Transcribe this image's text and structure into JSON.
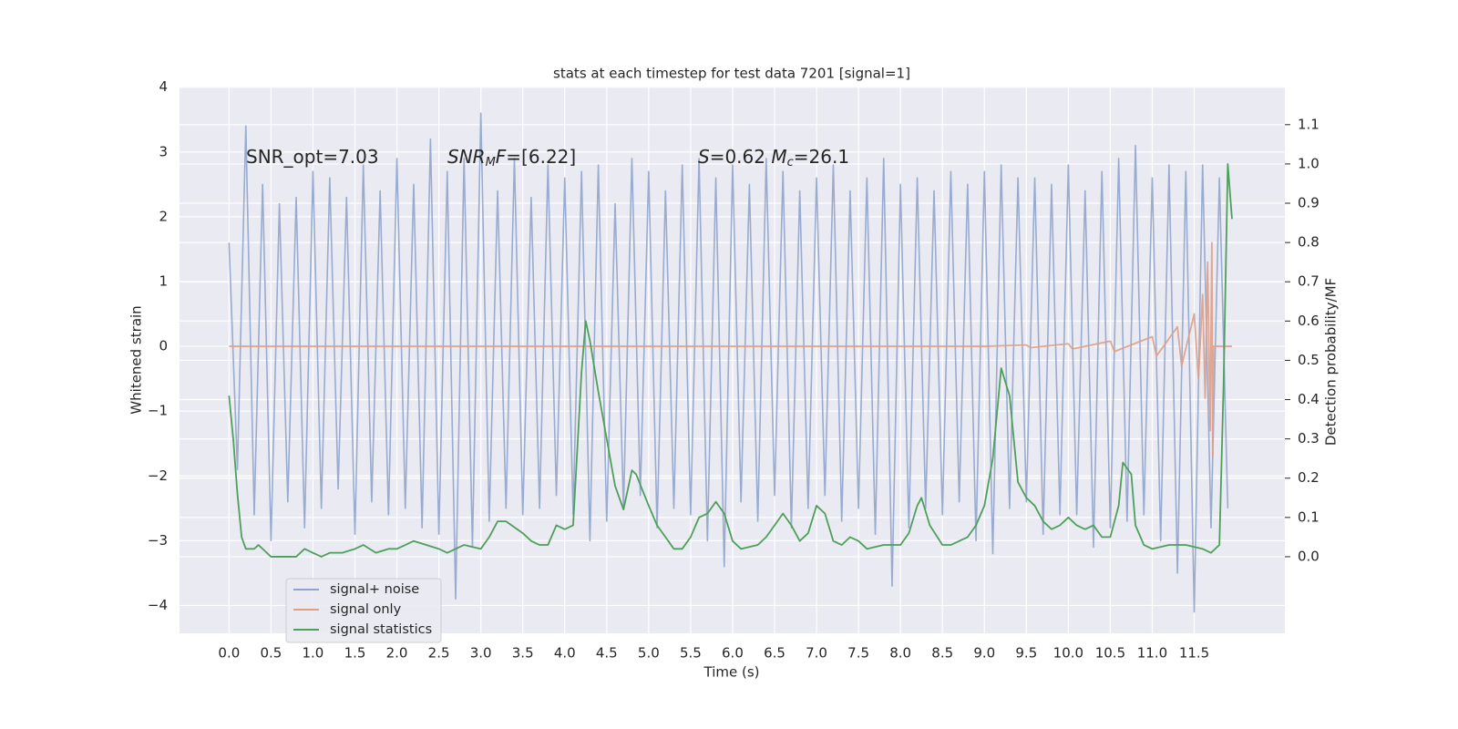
{
  "chart_data": {
    "type": "line",
    "title": "stats at each timestep for test data 7201 [signal=1]",
    "xlabel": "Time (s)",
    "ylabel": "Whitened strain",
    "y2label": "Detection probability/MF",
    "xlim": [
      -0.59,
      12.58
    ],
    "ylim": [
      -4.43,
      4.01
    ],
    "y2lim": [
      -0.195,
      1.197
    ],
    "xticks": [
      {
        "value": 0,
        "label": "0.0"
      },
      0.5,
      {
        "value": 1,
        "label": "1.0"
      },
      1.5,
      {
        "value": 2,
        "label": "2.0"
      },
      2.5,
      {
        "value": 3,
        "label": "3.0"
      },
      3.5,
      {
        "value": 4,
        "label": "4.0"
      },
      4.5,
      {
        "value": 5,
        "label": "5.0"
      },
      5.5,
      {
        "value": 6,
        "label": "6.0"
      },
      6.5,
      {
        "value": 7,
        "label": "7.0"
      },
      7.5,
      {
        "value": 8,
        "label": "8.0"
      },
      8.5,
      {
        "value": 9,
        "label": "9.0"
      },
      9.5,
      {
        "value": 10,
        "label": "10.0"
      },
      10.5,
      {
        "value": 11,
        "label": "11.0"
      },
      11.5
    ],
    "yticks": [
      {
        "value": -4,
        "label": "−4"
      },
      {
        "value": -3,
        "label": "−3"
      },
      {
        "value": -2,
        "label": "−2"
      },
      {
        "value": -1,
        "label": "−1"
      },
      0,
      1,
      2,
      3,
      4
    ],
    "y2ticks": [
      {
        "value": 0,
        "label": "0.0"
      },
      0.1,
      0.2,
      0.3,
      0.4,
      0.5,
      0.6,
      0.7,
      0.8,
      0.9,
      {
        "value": 1,
        "label": "1.0"
      },
      1.1
    ],
    "grid": true,
    "legend": "lower left",
    "annotations": [
      {
        "parts": [
          {
            "text": "SNR_opt=7.03"
          }
        ]
      },
      {
        "parts": [
          {
            "text": "SNR",
            "italic": true
          },
          {
            "text": "M",
            "italic": true,
            "sub": true
          },
          {
            "text": "F",
            "italic": true
          },
          {
            "text": "=[6.22]"
          }
        ]
      },
      {
        "parts": [
          {
            "text": "S",
            "italic": true
          },
          {
            "text": "=0.62  "
          },
          {
            "text": "M",
            "italic": true
          },
          {
            "text": "c",
            "italic": true,
            "sub": true
          },
          {
            "text": "=26.1"
          }
        ]
      }
    ],
    "series": [
      {
        "name": "signal+ noise",
        "color": "#8fa4cc",
        "axis": "y",
        "x": [
          0,
          0.1,
          0.2,
          0.3,
          0.4,
          0.5,
          0.6,
          0.7,
          0.8,
          0.9,
          1,
          1.1,
          1.2,
          1.3,
          1.4,
          1.5,
          1.6,
          1.7,
          1.8,
          1.9,
          2,
          2.1,
          2.2,
          2.3,
          2.4,
          2.5,
          2.6,
          2.7,
          2.8,
          2.9,
          3,
          3.1,
          3.2,
          3.3,
          3.4,
          3.5,
          3.6,
          3.7,
          3.8,
          3.9,
          4,
          4.1,
          4.2,
          4.3,
          4.4,
          4.5,
          4.6,
          4.7,
          4.8,
          4.9,
          5,
          5.1,
          5.2,
          5.3,
          5.4,
          5.5,
          5.6,
          5.7,
          5.8,
          5.9,
          6,
          6.1,
          6.2,
          6.3,
          6.4,
          6.5,
          6.6,
          6.7,
          6.8,
          6.9,
          7,
          7.1,
          7.2,
          7.3,
          7.4,
          7.5,
          7.6,
          7.7,
          7.8,
          7.9,
          8,
          8.1,
          8.2,
          8.3,
          8.4,
          8.5,
          8.6,
          8.7,
          8.8,
          8.9,
          9,
          9.1,
          9.2,
          9.3,
          9.4,
          9.5,
          9.6,
          9.7,
          9.8,
          9.9,
          10,
          10.1,
          10.2,
          10.3,
          10.4,
          10.5,
          10.6,
          10.7,
          10.8,
          10.9,
          11,
          11.1,
          11.2,
          11.3,
          11.4,
          11.5,
          11.6,
          11.7,
          11.8,
          11.9
        ],
        "values": [
          1.6,
          -1.9,
          3.4,
          -2.6,
          2.5,
          -3.0,
          2.2,
          -2.4,
          2.3,
          -2.8,
          2.7,
          -2.5,
          2.6,
          -2.2,
          2.3,
          -2.9,
          2.8,
          -2.4,
          2.4,
          -2.6,
          2.9,
          -2.5,
          2.5,
          -2.8,
          3.2,
          -2.9,
          2.7,
          -3.9,
          2.9,
          -3.1,
          3.6,
          -2.7,
          2.4,
          -2.5,
          2.9,
          -2.6,
          2.3,
          -2.5,
          2.8,
          -2.3,
          2.6,
          -2.6,
          2.7,
          -3.0,
          2.8,
          -2.7,
          2.2,
          -2.5,
          2.9,
          -2.3,
          2.7,
          -2.8,
          2.4,
          -2.5,
          2.8,
          -2.6,
          2.9,
          -3.0,
          2.6,
          -3.4,
          2.8,
          -2.4,
          2.5,
          -2.7,
          2.9,
          -2.3,
          2.7,
          -2.8,
          2.4,
          -2.5,
          2.6,
          -2.3,
          2.8,
          -2.7,
          2.4,
          -2.5,
          2.6,
          -2.9,
          2.9,
          -3.7,
          2.5,
          -2.8,
          2.6,
          -2.5,
          2.4,
          -2.6,
          2.7,
          -2.4,
          2.5,
          -3.0,
          2.7,
          -3.2,
          2.8,
          -2.5,
          2.6,
          -2.4,
          2.6,
          -2.9,
          2.5,
          -2.6,
          2.8,
          -2.6,
          2.4,
          -3.1,
          2.7,
          -2.8,
          2.9,
          -2.7,
          3.1,
          -2.6,
          2.6,
          -3.0,
          2.8,
          -3.5,
          2.7,
          -4.1,
          2.8,
          -2.8,
          2.6,
          -2.5
        ]
      },
      {
        "name": "signal only",
        "color": "#dd9f88",
        "axis": "y",
        "x": [
          0,
          9.0,
          9.5,
          9.55,
          10.0,
          10.05,
          10.5,
          10.55,
          11.0,
          11.05,
          11.3,
          11.35,
          11.5,
          11.55,
          11.6,
          11.63,
          11.66,
          11.69,
          11.71,
          11.72,
          11.73,
          11.95
        ],
        "values": [
          0,
          0,
          0.02,
          -0.02,
          0.04,
          -0.04,
          0.08,
          -0.08,
          0.15,
          -0.15,
          0.3,
          -0.3,
          0.5,
          -0.5,
          0.8,
          -0.8,
          1.3,
          -1.3,
          1.6,
          -1.7,
          0,
          0
        ]
      },
      {
        "name": "signal statistics",
        "color": "#4e9f5b",
        "axis": "y2",
        "x": [
          0,
          0.05,
          0.1,
          0.15,
          0.2,
          0.3,
          0.35,
          0.45,
          0.5,
          0.6,
          0.7,
          0.8,
          0.9,
          1.0,
          1.1,
          1.2,
          1.35,
          1.5,
          1.6,
          1.75,
          1.9,
          2.0,
          2.1,
          2.2,
          2.35,
          2.5,
          2.6,
          2.7,
          2.8,
          3.0,
          3.1,
          3.2,
          3.3,
          3.5,
          3.6,
          3.7,
          3.8,
          3.9,
          4.0,
          4.1,
          4.2,
          4.25,
          4.3,
          4.4,
          4.5,
          4.6,
          4.7,
          4.8,
          4.85,
          5.0,
          5.1,
          5.2,
          5.3,
          5.4,
          5.5,
          5.6,
          5.7,
          5.8,
          5.9,
          6.0,
          6.1,
          6.3,
          6.4,
          6.5,
          6.6,
          6.7,
          6.8,
          6.9,
          7.0,
          7.1,
          7.2,
          7.3,
          7.4,
          7.5,
          7.6,
          7.8,
          8.0,
          8.1,
          8.2,
          8.25,
          8.35,
          8.5,
          8.6,
          8.8,
          8.9,
          9.0,
          9.1,
          9.2,
          9.3,
          9.4,
          9.5,
          9.6,
          9.7,
          9.8,
          9.9,
          10.0,
          10.1,
          10.2,
          10.3,
          10.4,
          10.5,
          10.6,
          10.65,
          10.75,
          10.8,
          10.9,
          11.0,
          11.2,
          11.4,
          11.6,
          11.7,
          11.8,
          11.85,
          11.9,
          11.95
        ],
        "values": [
          0.41,
          0.3,
          0.16,
          0.05,
          0.02,
          0.02,
          0.03,
          0.01,
          0,
          0,
          0,
          0,
          0.02,
          0.01,
          0,
          0.01,
          0.01,
          0.02,
          0.03,
          0.01,
          0.02,
          0.02,
          0.03,
          0.04,
          0.03,
          0.02,
          0.01,
          0.02,
          0.03,
          0.02,
          0.05,
          0.09,
          0.09,
          0.06,
          0.04,
          0.03,
          0.03,
          0.08,
          0.07,
          0.08,
          0.47,
          0.6,
          0.55,
          0.42,
          0.3,
          0.18,
          0.12,
          0.22,
          0.21,
          0.13,
          0.08,
          0.05,
          0.02,
          0.02,
          0.05,
          0.1,
          0.11,
          0.14,
          0.11,
          0.04,
          0.02,
          0.03,
          0.05,
          0.08,
          0.11,
          0.08,
          0.04,
          0.06,
          0.13,
          0.11,
          0.04,
          0.03,
          0.05,
          0.04,
          0.02,
          0.03,
          0.03,
          0.06,
          0.13,
          0.15,
          0.08,
          0.03,
          0.03,
          0.05,
          0.08,
          0.13,
          0.25,
          0.48,
          0.41,
          0.19,
          0.15,
          0.13,
          0.09,
          0.07,
          0.08,
          0.1,
          0.08,
          0.07,
          0.08,
          0.05,
          0.05,
          0.13,
          0.24,
          0.21,
          0.08,
          0.03,
          0.02,
          0.03,
          0.03,
          0.02,
          0.01,
          0.03,
          0.44,
          1.0,
          0.86
        ]
      }
    ]
  }
}
